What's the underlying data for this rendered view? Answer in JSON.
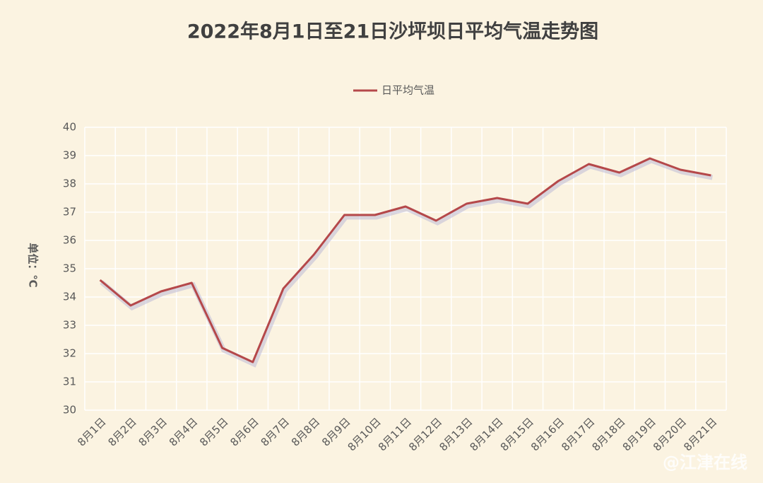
{
  "chart_data": {
    "type": "line",
    "title": "2022年8月1日至21日沙坪坝日平均气温走势图",
    "y_label": "单位：℃",
    "categories": [
      "8月1日",
      "8月2日",
      "8月3日",
      "8月4日",
      "8月5日",
      "8月6日",
      "8月7日",
      "8月8日",
      "8月9日",
      "8月10日",
      "8月11日",
      "8月12日",
      "8月13日",
      "8月14日",
      "8月15日",
      "8月16日",
      "8月17日",
      "8月18日",
      "8月19日",
      "8月20日",
      "8月21日"
    ],
    "series": [
      {
        "name": "日平均气温",
        "color": "#b5484a",
        "values": [
          34.6,
          33.7,
          34.2,
          34.5,
          32.2,
          31.7,
          34.3,
          35.5,
          36.9,
          36.9,
          37.2,
          36.7,
          37.3,
          37.5,
          37.3,
          38.1,
          38.7,
          38.4,
          38.9,
          38.5,
          38.3
        ]
      }
    ],
    "ylim": [
      30,
      40
    ],
    "yticks": [
      30,
      31,
      32,
      33,
      34,
      35,
      36,
      37,
      38,
      39,
      40
    ],
    "grid": true,
    "legend": "top",
    "watermark": "@江津在线"
  }
}
